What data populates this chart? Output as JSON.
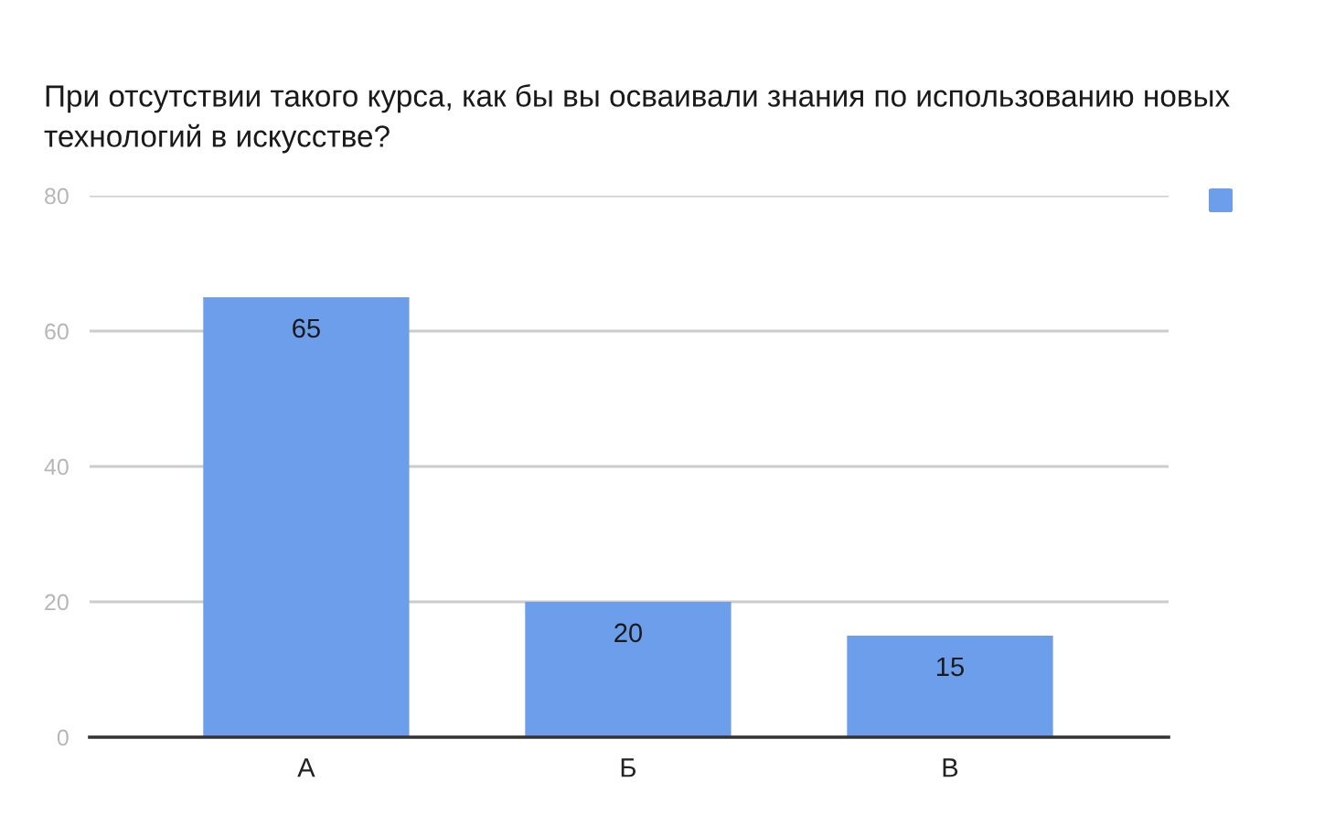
{
  "chart_data": {
    "type": "bar",
    "title": "При отсутствии такого курса, как бы вы осваивали знания по использованию новых технологий в искусстве?",
    "categories": [
      "А",
      "Б",
      "В"
    ],
    "series": [
      {
        "color": "#6d9eeb",
        "values": [
          65,
          20,
          15
        ]
      }
    ],
    "ylim": [
      0,
      80
    ],
    "yticks": [
      0,
      20,
      40,
      60,
      80
    ],
    "grid": "y",
    "data_labels": true
  }
}
